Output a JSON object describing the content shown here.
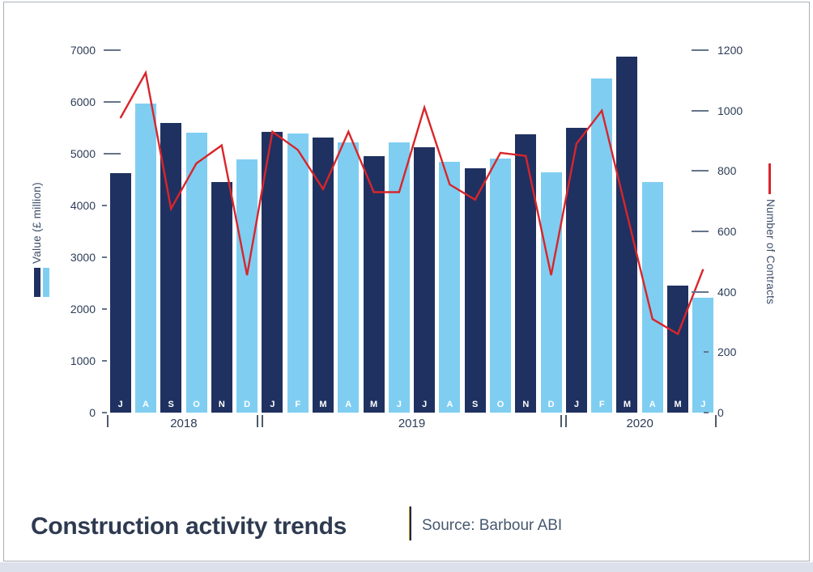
{
  "title": "Construction activity trends",
  "source": "Source: Barbour ABI",
  "chart_data": {
    "type": "bar+line",
    "months": [
      {
        "m": "J",
        "y": "2018",
        "shade": "dark"
      },
      {
        "m": "A",
        "y": "2018",
        "shade": "light"
      },
      {
        "m": "S",
        "y": "2018",
        "shade": "dark"
      },
      {
        "m": "O",
        "y": "2018",
        "shade": "light"
      },
      {
        "m": "N",
        "y": "2018",
        "shade": "dark"
      },
      {
        "m": "D",
        "y": "2018",
        "shade": "light"
      },
      {
        "m": "J",
        "y": "2019",
        "shade": "dark"
      },
      {
        "m": "F",
        "y": "2019",
        "shade": "light"
      },
      {
        "m": "M",
        "y": "2019",
        "shade": "dark"
      },
      {
        "m": "A",
        "y": "2019",
        "shade": "light"
      },
      {
        "m": "M",
        "y": "2019",
        "shade": "dark"
      },
      {
        "m": "J",
        "y": "2019",
        "shade": "light"
      },
      {
        "m": "J",
        "y": "2019",
        "shade": "dark"
      },
      {
        "m": "A",
        "y": "2019",
        "shade": "light"
      },
      {
        "m": "S",
        "y": "2019",
        "shade": "dark"
      },
      {
        "m": "O",
        "y": "2019",
        "shade": "light"
      },
      {
        "m": "N",
        "y": "2019",
        "shade": "dark"
      },
      {
        "m": "D",
        "y": "2019",
        "shade": "light"
      },
      {
        "m": "J",
        "y": "2020",
        "shade": "dark"
      },
      {
        "m": "F",
        "y": "2020",
        "shade": "light"
      },
      {
        "m": "M",
        "y": "2020",
        "shade": "dark"
      },
      {
        "m": "A",
        "y": "2020",
        "shade": "light"
      },
      {
        "m": "M",
        "y": "2020",
        "shade": "dark"
      },
      {
        "m": "J",
        "y": "2020",
        "shade": "light"
      }
    ],
    "year_groups": [
      {
        "label": "2018",
        "months": 6
      },
      {
        "label": "2019",
        "months": 12
      },
      {
        "label": "2020",
        "months": 6
      }
    ],
    "series": [
      {
        "name": "Value (£ million)",
        "type": "bar",
        "axis": "left",
        "values": [
          4620,
          5970,
          5590,
          5400,
          4460,
          4890,
          5420,
          5390,
          5310,
          5220,
          4960,
          5220,
          5120,
          4850,
          4720,
          4900,
          5370,
          4640,
          5500,
          6460,
          6870,
          4460,
          2450,
          2220
        ]
      },
      {
        "name": "Number of Contracts",
        "type": "line",
        "axis": "right",
        "values": [
          975,
          1125,
          675,
          825,
          885,
          455,
          930,
          870,
          740,
          930,
          730,
          730,
          1010,
          755,
          705,
          860,
          850,
          455,
          890,
          1000,
          655,
          310,
          260,
          475
        ]
      }
    ],
    "left_axis": {
      "label": "Value (£ million)",
      "min": 0,
      "max": 7000,
      "ticks": [
        {
          "value": 0,
          "long": false
        },
        {
          "value": 1000,
          "long": false
        },
        {
          "value": 2000,
          "long": false
        },
        {
          "value": 3000,
          "long": false
        },
        {
          "value": 4000,
          "long": false
        },
        {
          "value": 5000,
          "long": true
        },
        {
          "value": 6000,
          "long": true
        },
        {
          "value": 7000,
          "long": true
        }
      ]
    },
    "right_axis": {
      "label": "Number of Contracts",
      "min": 0,
      "max": 1200,
      "ticks": [
        {
          "value": 0,
          "long": false
        },
        {
          "value": 200,
          "long": false
        },
        {
          "value": 400,
          "long": true
        },
        {
          "value": 600,
          "long": true
        },
        {
          "value": 800,
          "long": true
        },
        {
          "value": 1000,
          "long": true
        },
        {
          "value": 1200,
          "long": true
        }
      ]
    },
    "colors": {
      "bar_dark": "#1F3160",
      "bar_light": "#7FCEF1",
      "line": "#D9252B"
    },
    "legend": {
      "bars": "Value (£ million)",
      "line": "Number of Contracts"
    }
  }
}
